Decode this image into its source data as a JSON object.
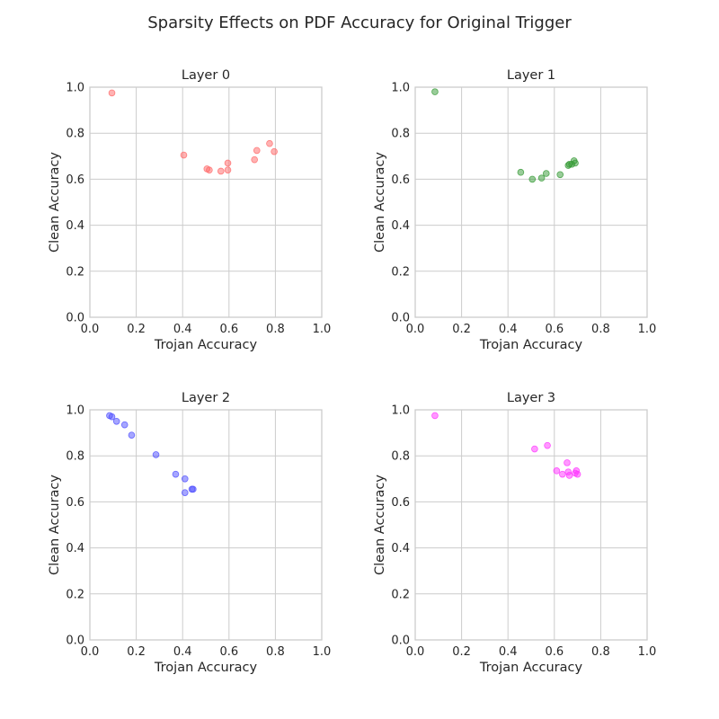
{
  "figure": {
    "title": "Sparsity Effects on PDF Accuracy for Original Trigger"
  },
  "chart_data": [
    {
      "type": "scatter",
      "title": "Layer 0",
      "xlabel": "Trojan Accuracy",
      "ylabel": "Clean Accuracy",
      "xlim": [
        0,
        1
      ],
      "ylim": [
        0,
        1
      ],
      "xticks": [
        "0.0",
        "0.2",
        "0.4",
        "0.6",
        "0.8",
        "1.0"
      ],
      "yticks": [
        "0.0",
        "0.2",
        "0.4",
        "0.6",
        "0.8",
        "1.0"
      ],
      "grid": true,
      "color": "#ff6666",
      "points": [
        {
          "x": 0.095,
          "y": 0.975
        },
        {
          "x": 0.405,
          "y": 0.705
        },
        {
          "x": 0.505,
          "y": 0.645
        },
        {
          "x": 0.515,
          "y": 0.64
        },
        {
          "x": 0.565,
          "y": 0.635
        },
        {
          "x": 0.595,
          "y": 0.64
        },
        {
          "x": 0.595,
          "y": 0.67
        },
        {
          "x": 0.71,
          "y": 0.685
        },
        {
          "x": 0.72,
          "y": 0.725
        },
        {
          "x": 0.775,
          "y": 0.755
        },
        {
          "x": 0.795,
          "y": 0.72
        }
      ]
    },
    {
      "type": "scatter",
      "title": "Layer 1",
      "xlabel": "Trojan Accuracy",
      "ylabel": "Clean Accuracy",
      "xlim": [
        0,
        1
      ],
      "ylim": [
        0,
        1
      ],
      "xticks": [
        "0.0",
        "0.2",
        "0.4",
        "0.6",
        "0.8",
        "1.0"
      ],
      "yticks": [
        "0.0",
        "0.2",
        "0.4",
        "0.6",
        "0.8",
        "1.0"
      ],
      "grid": true,
      "color": "#339933",
      "points": [
        {
          "x": 0.085,
          "y": 0.98
        },
        {
          "x": 0.455,
          "y": 0.63
        },
        {
          "x": 0.505,
          "y": 0.6
        },
        {
          "x": 0.545,
          "y": 0.605
        },
        {
          "x": 0.565,
          "y": 0.625
        },
        {
          "x": 0.625,
          "y": 0.62
        },
        {
          "x": 0.66,
          "y": 0.66
        },
        {
          "x": 0.665,
          "y": 0.665
        },
        {
          "x": 0.675,
          "y": 0.665
        },
        {
          "x": 0.685,
          "y": 0.68
        },
        {
          "x": 0.69,
          "y": 0.67
        }
      ]
    },
    {
      "type": "scatter",
      "title": "Layer 2",
      "xlabel": "Trojan Accuracy",
      "ylabel": "Clean Accuracy",
      "xlim": [
        0,
        1
      ],
      "ylim": [
        0,
        1
      ],
      "xticks": [
        "0.0",
        "0.2",
        "0.4",
        "0.6",
        "0.8",
        "1.0"
      ],
      "yticks": [
        "0.0",
        "0.2",
        "0.4",
        "0.6",
        "0.8",
        "1.0"
      ],
      "grid": true,
      "color": "#4d4dff",
      "points": [
        {
          "x": 0.085,
          "y": 0.975
        },
        {
          "x": 0.095,
          "y": 0.97
        },
        {
          "x": 0.115,
          "y": 0.95
        },
        {
          "x": 0.15,
          "y": 0.935
        },
        {
          "x": 0.18,
          "y": 0.89
        },
        {
          "x": 0.285,
          "y": 0.805
        },
        {
          "x": 0.37,
          "y": 0.72
        },
        {
          "x": 0.41,
          "y": 0.7
        },
        {
          "x": 0.41,
          "y": 0.64
        },
        {
          "x": 0.44,
          "y": 0.655
        },
        {
          "x": 0.445,
          "y": 0.655
        }
      ]
    },
    {
      "type": "scatter",
      "title": "Layer 3",
      "xlabel": "Trojan Accuracy",
      "ylabel": "Clean Accuracy",
      "xlim": [
        0,
        1
      ],
      "ylim": [
        0,
        1
      ],
      "xticks": [
        "0.0",
        "0.2",
        "0.4",
        "0.6",
        "0.8",
        "1.0"
      ],
      "yticks": [
        "0.0",
        "0.2",
        "0.4",
        "0.6",
        "0.8",
        "1.0"
      ],
      "grid": true,
      "color": "#ff33ff",
      "points": [
        {
          "x": 0.085,
          "y": 0.975
        },
        {
          "x": 0.515,
          "y": 0.83
        },
        {
          "x": 0.57,
          "y": 0.845
        },
        {
          "x": 0.61,
          "y": 0.735
        },
        {
          "x": 0.635,
          "y": 0.72
        },
        {
          "x": 0.655,
          "y": 0.77
        },
        {
          "x": 0.66,
          "y": 0.73
        },
        {
          "x": 0.665,
          "y": 0.715
        },
        {
          "x": 0.69,
          "y": 0.725
        },
        {
          "x": 0.695,
          "y": 0.735
        },
        {
          "x": 0.7,
          "y": 0.72
        }
      ]
    }
  ]
}
